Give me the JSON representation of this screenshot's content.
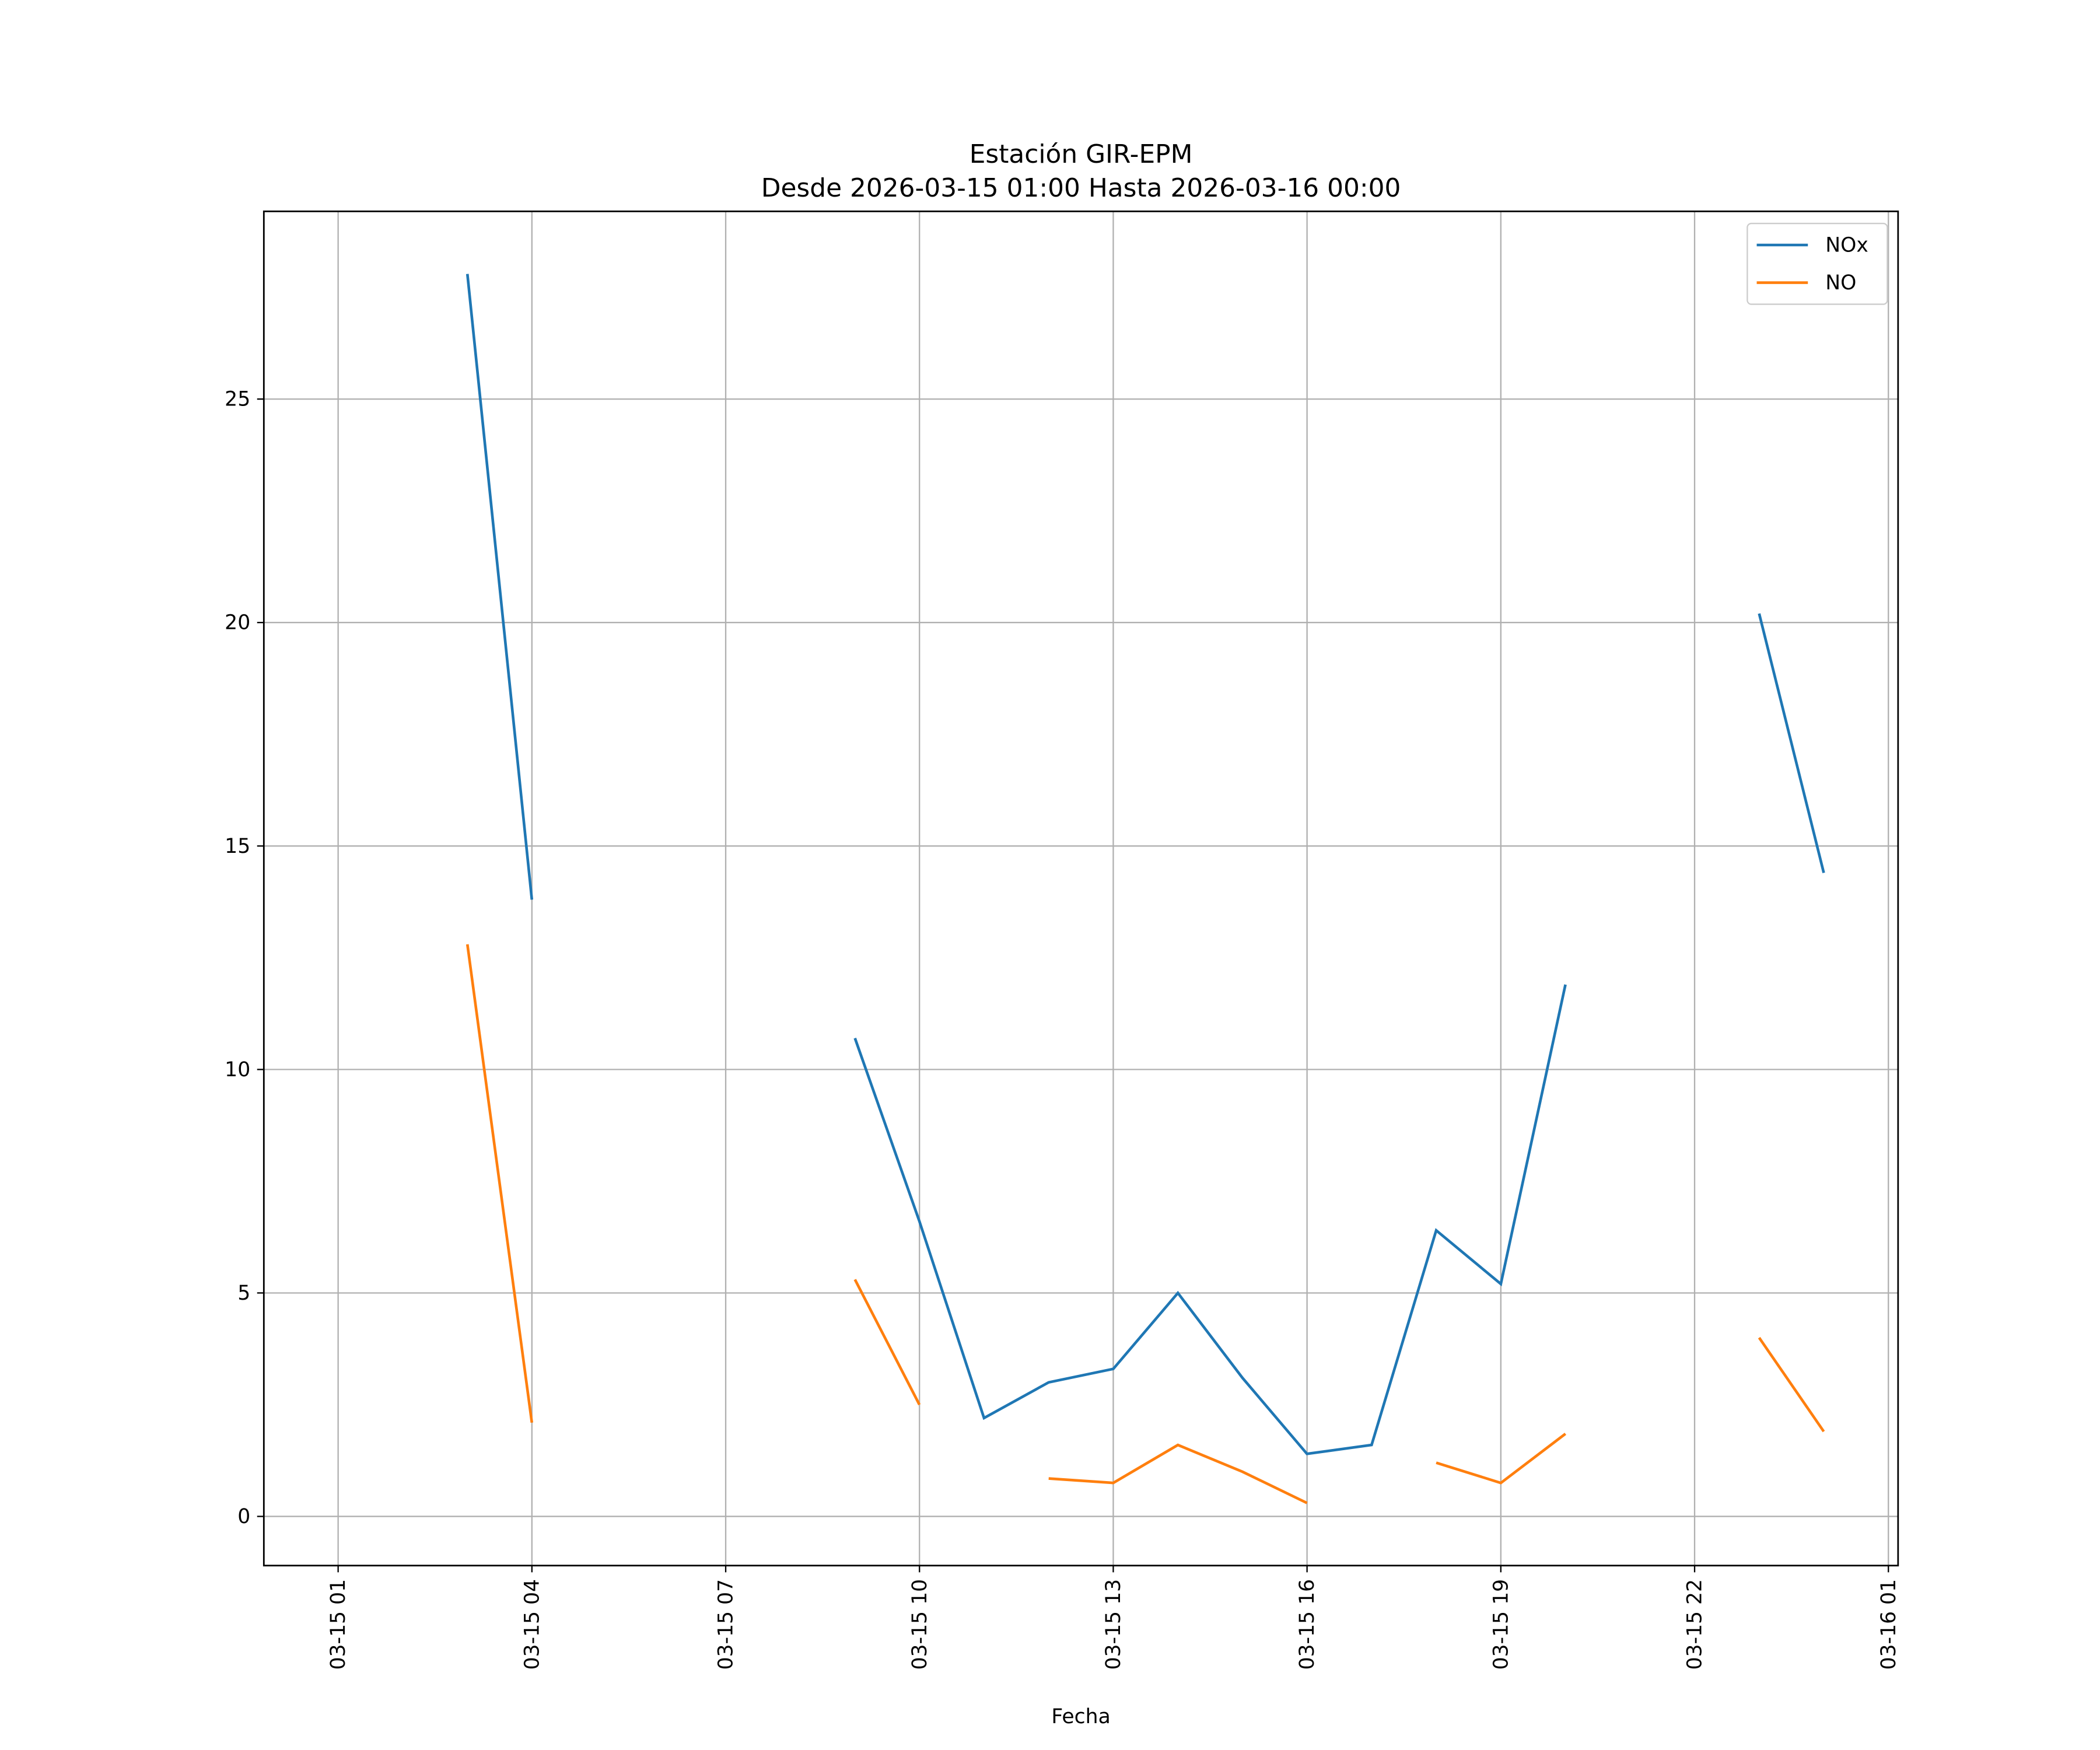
{
  "chart_data": {
    "type": "line",
    "title": "Estación GIR-EPM",
    "subtitle": "Desde 2026-03-15 01:00 Hasta 2026-03-16 00:00",
    "xlabel": "Fecha",
    "ylabel": "",
    "x_hours": [
      1,
      2,
      3,
      4,
      5,
      6,
      7,
      8,
      9,
      10,
      11,
      12,
      13,
      14,
      15,
      16,
      17,
      18,
      19,
      20,
      21,
      22,
      23,
      24
    ],
    "xlim_hours": [
      -0.15,
      25.15
    ],
    "ylim": [
      -1.1,
      29.2
    ],
    "grid": true,
    "legend_position": "top-right",
    "x_ticks": [
      {
        "hour": 1,
        "label": "03-15 01"
      },
      {
        "hour": 4,
        "label": "03-15 04"
      },
      {
        "hour": 7,
        "label": "03-15 07"
      },
      {
        "hour": 10,
        "label": "03-15 10"
      },
      {
        "hour": 13,
        "label": "03-15 13"
      },
      {
        "hour": 16,
        "label": "03-15 16"
      },
      {
        "hour": 19,
        "label": "03-15 19"
      },
      {
        "hour": 22,
        "label": "03-15 22"
      },
      {
        "hour": 25,
        "label": "03-16 01"
      }
    ],
    "y_ticks": [
      {
        "value": 0,
        "label": "0"
      },
      {
        "value": 5,
        "label": "5"
      },
      {
        "value": 10,
        "label": "10"
      },
      {
        "value": 15,
        "label": "15"
      },
      {
        "value": 20,
        "label": "20"
      },
      {
        "value": 25,
        "label": "25"
      }
    ],
    "series": [
      {
        "name": "NOx",
        "color": "#1f77b4",
        "values": [
          null,
          null,
          27.8,
          13.8,
          null,
          null,
          null,
          null,
          10.7,
          6.6,
          2.2,
          3.0,
          3.3,
          5.0,
          3.1,
          1.4,
          1.6,
          6.4,
          5.2,
          11.9,
          null,
          null,
          20.2,
          14.4
        ]
      },
      {
        "name": "NO",
        "color": "#ff7f0e",
        "values": [
          null,
          null,
          12.8,
          2.1,
          null,
          null,
          null,
          null,
          5.3,
          2.5,
          null,
          0.85,
          0.75,
          1.6,
          1.0,
          0.3,
          null,
          1.2,
          0.75,
          1.85,
          null,
          null,
          4.0,
          1.9
        ]
      }
    ]
  }
}
